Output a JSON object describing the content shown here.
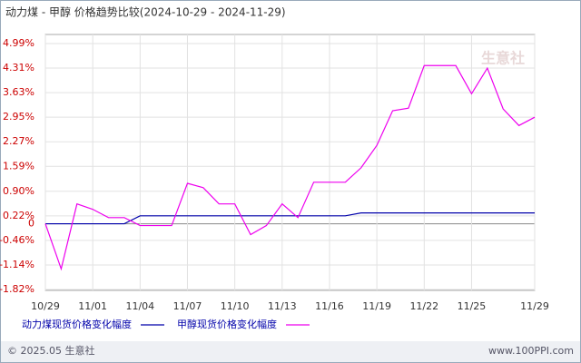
{
  "chart_data": {
    "type": "line",
    "title": "动力煤 - 甲醇 价格趋势比较(2024-10-29 - 2024-11-29)",
    "watermark": "生意社",
    "footer_left": "© 2025.05 生意社",
    "footer_right": "www.100PPI.com",
    "categories": [
      "10/29",
      null,
      null,
      "11/01",
      null,
      null,
      "11/04",
      null,
      null,
      "11/07",
      null,
      null,
      "11/10",
      null,
      null,
      "11/13",
      null,
      null,
      "11/16",
      null,
      null,
      "11/19",
      null,
      null,
      "11/22",
      null,
      null,
      "11/25",
      null,
      null,
      null,
      "11/29"
    ],
    "series": [
      {
        "name": "动力煤现货价格变化幅度",
        "color": "#0000aa",
        "values": [
          0,
          0,
          0,
          0,
          0,
          0,
          0.22,
          0.22,
          0.22,
          0.22,
          0.22,
          0.22,
          0.22,
          0.22,
          0.22,
          0.22,
          0.22,
          0.22,
          0.22,
          0.22,
          0.3,
          0.3,
          0.3,
          0.3,
          0.3,
          0.3,
          0.3,
          0.3,
          0.3,
          0.3,
          0.3,
          0.3
        ]
      },
      {
        "name": "甲醇现货价格变化幅度",
        "color": "#ee00ee",
        "values": [
          0,
          -1.25,
          0.55,
          0.4,
          0.17,
          0.17,
          -0.05,
          -0.05,
          -0.05,
          1.12,
          1.0,
          0.55,
          0.55,
          -0.3,
          -0.05,
          0.55,
          0.17,
          1.15,
          1.15,
          1.15,
          1.55,
          2.17,
          3.13,
          3.2,
          4.38,
          4.38,
          4.38,
          3.6,
          4.31,
          3.18,
          2.72,
          2.95
        ]
      }
    ],
    "ylim": [
      -1.82,
      4.99
    ],
    "yticks": [
      {
        "value": 4.99,
        "label": "4.99%"
      },
      {
        "value": 4.31,
        "label": "4.31%"
      },
      {
        "value": 3.63,
        "label": "3.63%"
      },
      {
        "value": 2.95,
        "label": "2.95%"
      },
      {
        "value": 2.27,
        "label": "2.27%"
      },
      {
        "value": 1.59,
        "label": "1.59%"
      },
      {
        "value": 0.9,
        "label": "0.90%"
      },
      {
        "value": 0.22,
        "label": "0.22%"
      },
      0,
      {
        "value": -0.46,
        "label": "-0.46%"
      },
      {
        "value": -1.14,
        "label": "-1.14%"
      },
      {
        "value": -1.82,
        "label": "-1.82%"
      }
    ],
    "grid": true
  }
}
